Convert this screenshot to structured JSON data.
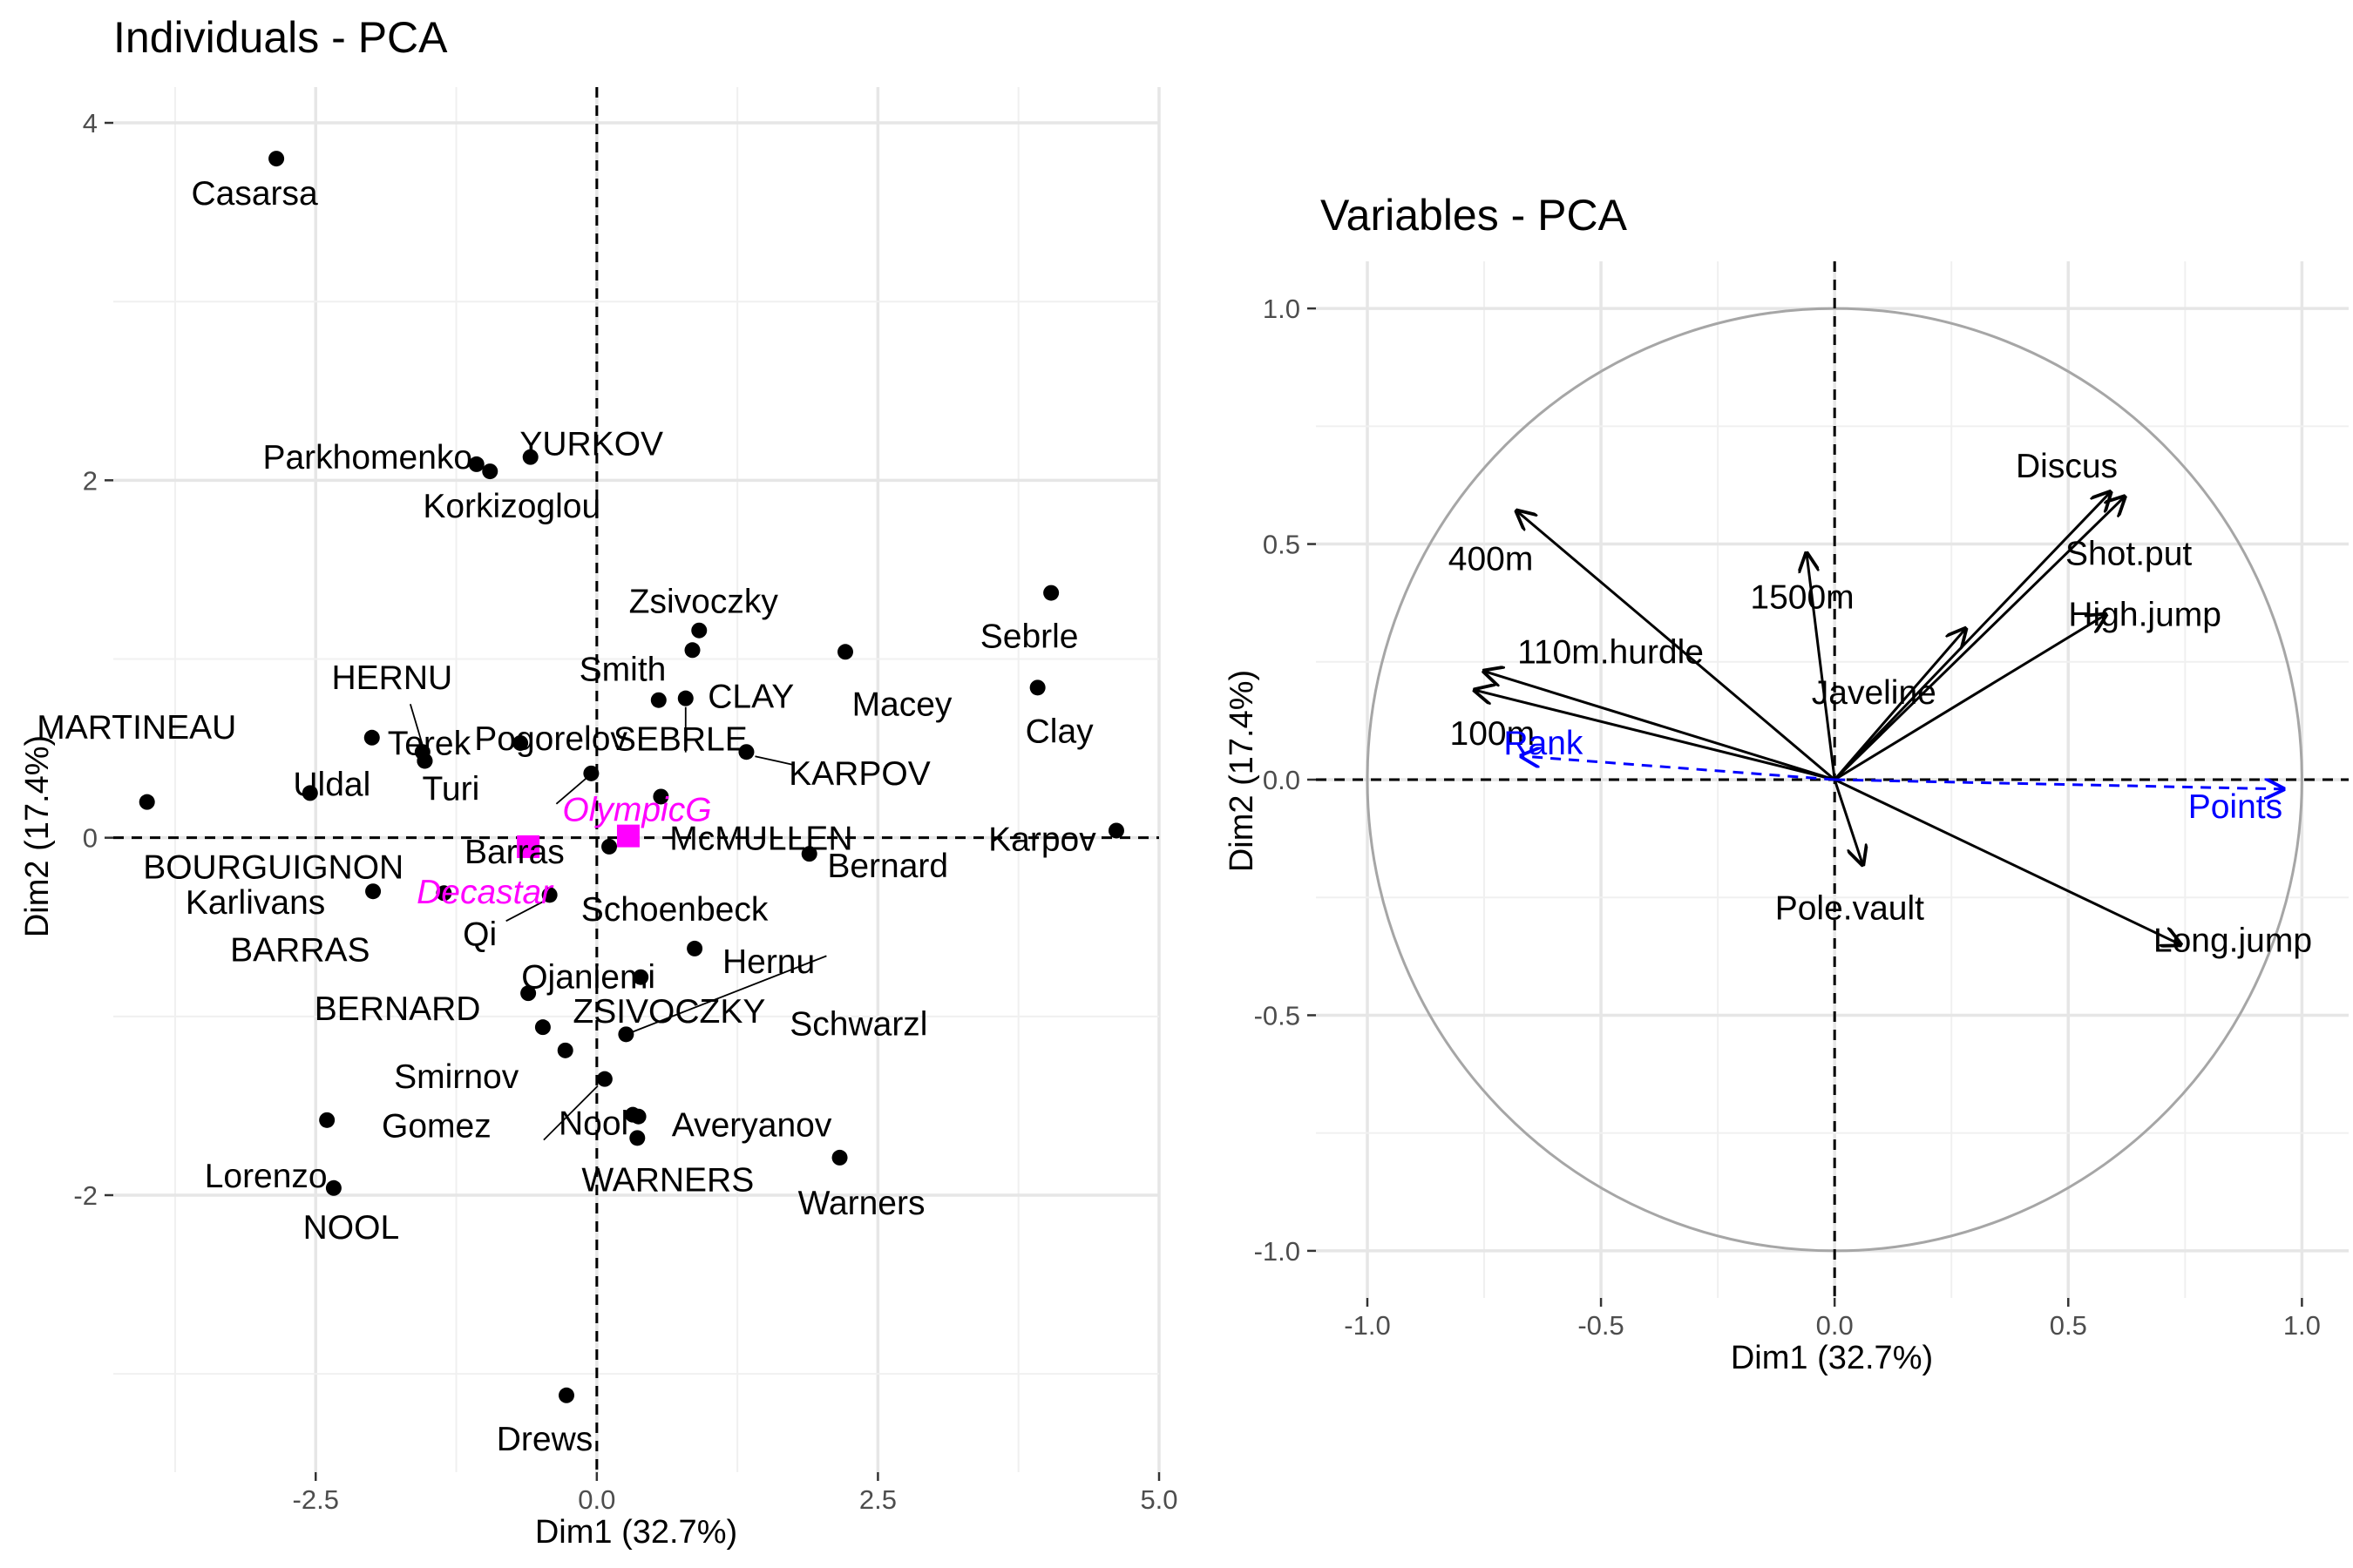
{
  "chart_data": [
    {
      "type": "scatter",
      "title": "Individuals - PCA",
      "xlabel": "Dim1 (32.7%)",
      "ylabel": "Dim2 (17.4%)",
      "xlim": [
        -4.3,
        5.0
      ],
      "ylim": [
        -3.55,
        4.2
      ],
      "xticks": [
        -2.5,
        0.0,
        2.5,
        5.0
      ],
      "xtick_labels": [
        "-2.5",
        "0.0",
        "2.5",
        "5.0"
      ],
      "yticks": [
        -2,
        0,
        2,
        4
      ],
      "ytick_labels": [
        "-2",
        "0",
        "2",
        "4"
      ],
      "grid": true,
      "reference_lines": [
        "x=0",
        "y=0"
      ],
      "colors": {
        "active": "#000000",
        "supplementary": "#ff00ff"
      },
      "points": [
        {
          "name": "Casarsa",
          "x": -2.85,
          "y": 3.8
        },
        {
          "name": "Parkhomenko",
          "x": -1.07,
          "y": 2.09
        },
        {
          "name": "Korkizoglou",
          "x": -0.95,
          "y": 2.05
        },
        {
          "name": "YURKOV",
          "x": -0.59,
          "y": 2.13
        },
        {
          "name": "Zsivoczky",
          "x": 0.91,
          "y": 1.16
        },
        {
          "name": "Smith",
          "x": 0.85,
          "y": 1.05
        },
        {
          "name": "Macey",
          "x": 2.21,
          "y": 1.04
        },
        {
          "name": "Sebrle",
          "x": 4.04,
          "y": 1.37
        },
        {
          "name": "Clay",
          "x": 3.92,
          "y": 0.84
        },
        {
          "name": "HERNU",
          "x": -1.55,
          "y": 0.48
        },
        {
          "name": "Terek",
          "x": -1.53,
          "y": 0.43
        },
        {
          "name": "MARTINEAU",
          "x": -2.0,
          "y": 0.56
        },
        {
          "name": "Turi",
          "x": -1.53,
          "y": 0.43
        },
        {
          "name": "Pogorelov",
          "x": -0.68,
          "y": 0.53
        },
        {
          "name": "CLAY",
          "x": 0.79,
          "y": 0.78
        },
        {
          "name": "KARPOV",
          "x": 1.33,
          "y": 0.48
        },
        {
          "name": "SEBRLE",
          "x": 0.55,
          "y": 0.77
        },
        {
          "name": "Uldal",
          "x": -2.55,
          "y": 0.25
        },
        {
          "name": "BOURGUIGNON",
          "x": -4.0,
          "y": 0.2
        },
        {
          "name": "Barras",
          "x": -0.05,
          "y": 0.36
        },
        {
          "name": "McMULLEN",
          "x": 0.57,
          "y": 0.23
        },
        {
          "name": "Karpov",
          "x": 4.62,
          "y": 0.04
        },
        {
          "name": "Schoenbeck",
          "x": 0.11,
          "y": -0.05
        },
        {
          "name": "Bernard",
          "x": 1.89,
          "y": -0.09
        },
        {
          "name": "Karlivans",
          "x": -1.99,
          "y": -0.3
        },
        {
          "name": "BARRAS",
          "x": -1.36,
          "y": -0.31
        },
        {
          "name": "Qi",
          "x": -0.42,
          "y": -0.32
        },
        {
          "name": "Hernu",
          "x": 0.87,
          "y": -0.62
        },
        {
          "name": "Ojaniemi",
          "x": 0.39,
          "y": -0.78
        },
        {
          "name": "BERNARD",
          "x": -0.61,
          "y": -0.87
        },
        {
          "name": "ZSIVOCZKY",
          "x": -0.48,
          "y": -1.06
        },
        {
          "name": "Schwarzl",
          "x": 0.26,
          "y": -1.1
        },
        {
          "name": "Smirnov",
          "x": -0.28,
          "y": -1.19
        },
        {
          "name": "Gomez",
          "x": 0.07,
          "y": -1.35
        },
        {
          "name": "Nool",
          "x": 0.32,
          "y": -1.55
        },
        {
          "name": "Averyanov",
          "x": 0.37,
          "y": -1.56
        },
        {
          "name": "WARNERS",
          "x": 0.36,
          "y": -1.68
        },
        {
          "name": "Warners",
          "x": 2.16,
          "y": -1.79
        },
        {
          "name": "Lorenzo",
          "x": -2.4,
          "y": -1.58
        },
        {
          "name": "NOOL",
          "x": -2.34,
          "y": -1.96
        },
        {
          "name": "Drews",
          "x": -0.27,
          "y": -3.12
        }
      ],
      "supplementary": [
        {
          "name": "OlympicG",
          "x": 0.28,
          "y": 0.01
        },
        {
          "name": "Decastar",
          "x": -0.61,
          "y": -0.05
        }
      ]
    },
    {
      "type": "correlation-circle",
      "title": "Variables - PCA",
      "xlabel": "Dim1 (32.7%)",
      "ylabel": "Dim2 (17.4%)",
      "xlim": [
        -1.11,
        1.1
      ],
      "ylim": [
        -1.1,
        1.1
      ],
      "xticks": [
        -1.0,
        -0.5,
        0.0,
        0.5,
        1.0
      ],
      "xtick_labels": [
        "-1.0",
        "-0.5",
        "0.0",
        "0.5",
        "1.0"
      ],
      "yticks": [
        -1.0,
        -0.5,
        0.0,
        0.5,
        1.0
      ],
      "ytick_labels": [
        "-1.0",
        "-0.5",
        "0.0",
        "0.5",
        "1.0"
      ],
      "grid": true,
      "reference_lines": [
        "x=0",
        "y=0"
      ],
      "circle_radius": 1.0,
      "colors": {
        "active": "#000000",
        "supplementary": "#0000ff",
        "circle": "#a6a6a6"
      },
      "vectors": [
        {
          "name": "400m",
          "x": -0.68,
          "y": 0.57
        },
        {
          "name": "1500m",
          "x": -0.06,
          "y": 0.48
        },
        {
          "name": "110m.hurdle",
          "x": -0.75,
          "y": 0.23
        },
        {
          "name": "100m",
          "x": -0.77,
          "y": 0.19
        },
        {
          "name": "Discus",
          "x": 0.59,
          "y": 0.61
        },
        {
          "name": "Shot.put",
          "x": 0.62,
          "y": 0.6
        },
        {
          "name": "High.jump",
          "x": 0.58,
          "y": 0.35
        },
        {
          "name": "Javeline",
          "x": 0.28,
          "y": 0.32
        },
        {
          "name": "Pole.vault",
          "x": 0.06,
          "y": -0.18
        },
        {
          "name": "Long.jump",
          "x": 0.74,
          "y": -0.35
        }
      ],
      "supplementary_vectors": [
        {
          "name": "Rank",
          "x": -0.67,
          "y": 0.05
        },
        {
          "name": "Points",
          "x": 0.96,
          "y": -0.02
        }
      ]
    }
  ]
}
